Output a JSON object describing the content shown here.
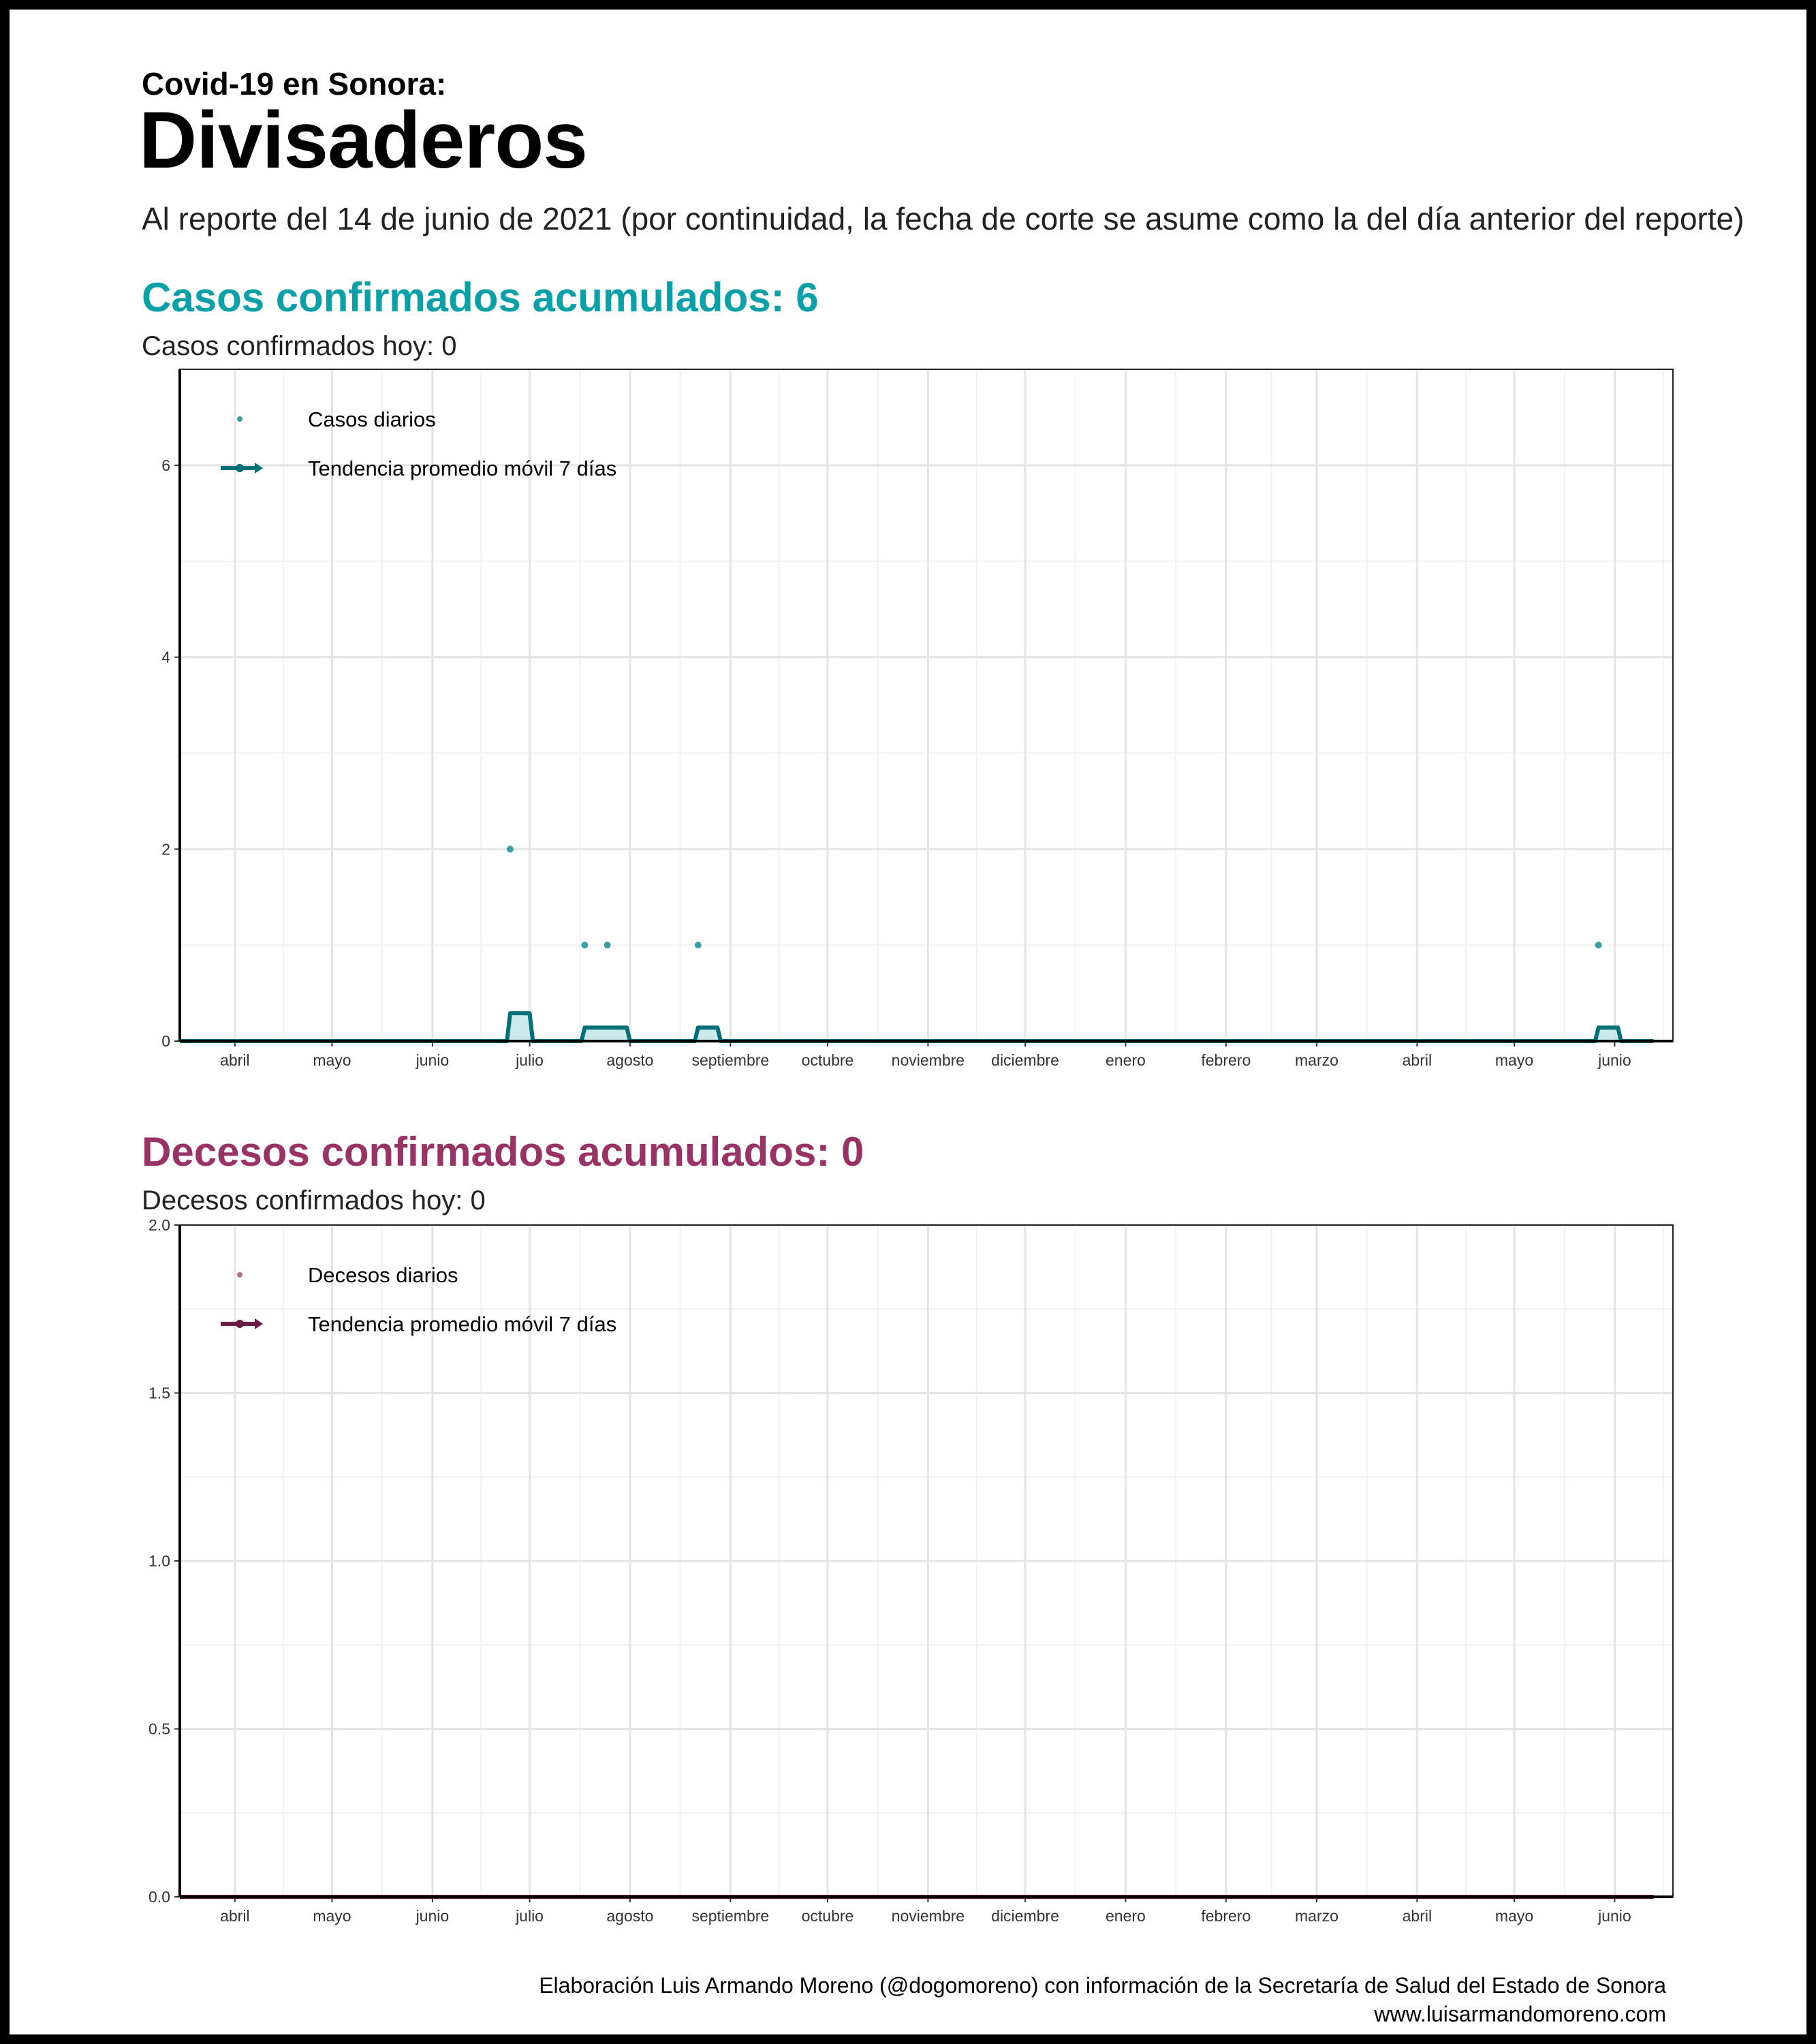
{
  "header": {
    "kicker": "Covid-19 en Sonora:",
    "place": "Divisaderos",
    "subtitle": "Al reporte del 14 de junio de 2021 (por continuidad, la fecha de corte se asume como la del día anterior del reporte)"
  },
  "cases": {
    "heading": "Casos confirmados acumulados: 6",
    "today": "Casos confirmados hoy: 0"
  },
  "deaths": {
    "heading": "Decesos confirmados acumulados: 0",
    "today": "Decesos confirmados hoy: 0"
  },
  "caption": {
    "line1": "Elaboración Luis Armando Moreno (@dogomoreno) con información de la Secretaría de Salud del Estado de Sonora",
    "line2": "www.luisarmandomoreno.com"
  },
  "chart_data": [
    {
      "type": "scatter",
      "title": "",
      "xlabel": "",
      "ylabel": "",
      "x_axis": "date",
      "xlim": [
        "2020-03-15",
        "2021-06-19"
      ],
      "ylim": [
        0,
        7
      ],
      "y_ticks": [
        0,
        2,
        4,
        6
      ],
      "grid": true,
      "legend_position": "top-left",
      "x_tick_labels": [
        {
          "date": "2020-04-01",
          "label": "abril"
        },
        {
          "date": "2020-05-01",
          "label": "mayo"
        },
        {
          "date": "2020-06-01",
          "label": "junio"
        },
        {
          "date": "2020-07-01",
          "label": "julio"
        },
        {
          "date": "2020-08-01",
          "label": "agosto"
        },
        {
          "date": "2020-09-01",
          "label": "septiembre"
        },
        {
          "date": "2020-10-01",
          "label": "octubre"
        },
        {
          "date": "2020-11-01",
          "label": "noviembre"
        },
        {
          "date": "2020-12-01",
          "label": "diciembre"
        },
        {
          "date": "2021-01-01",
          "label": "enero"
        },
        {
          "date": "2021-02-01",
          "label": "febrero"
        },
        {
          "date": "2021-03-01",
          "label": "marzo"
        },
        {
          "date": "2021-04-01",
          "label": "abril"
        },
        {
          "date": "2021-05-01",
          "label": "mayo"
        },
        {
          "date": "2021-06-01",
          "label": "junio"
        }
      ],
      "series": [
        {
          "name": "Casos diarios",
          "kind": "points",
          "color": "#3a9ea5",
          "points": [
            {
              "x": "2020-06-25",
              "y": 2
            },
            {
              "x": "2020-07-18",
              "y": 1
            },
            {
              "x": "2020-07-25",
              "y": 1
            },
            {
              "x": "2020-08-22",
              "y": 1
            },
            {
              "x": "2021-05-27",
              "y": 1
            }
          ]
        },
        {
          "name": "Tendencia promedio móvil 7 días",
          "kind": "line-area",
          "color": "#007078",
          "fill": "#bfe3e6",
          "points": [
            {
              "x": "2020-03-15",
              "y": 0
            },
            {
              "x": "2020-06-24",
              "y": 0
            },
            {
              "x": "2020-06-25",
              "y": 0.29
            },
            {
              "x": "2020-07-01",
              "y": 0.29
            },
            {
              "x": "2020-07-02",
              "y": 0
            },
            {
              "x": "2020-07-17",
              "y": 0
            },
            {
              "x": "2020-07-18",
              "y": 0.14
            },
            {
              "x": "2020-07-31",
              "y": 0.14
            },
            {
              "x": "2020-08-01",
              "y": 0
            },
            {
              "x": "2020-08-21",
              "y": 0
            },
            {
              "x": "2020-08-22",
              "y": 0.14
            },
            {
              "x": "2020-08-28",
              "y": 0.14
            },
            {
              "x": "2020-08-29",
              "y": 0
            },
            {
              "x": "2021-05-26",
              "y": 0
            },
            {
              "x": "2021-05-27",
              "y": 0.14
            },
            {
              "x": "2021-06-02",
              "y": 0.14
            },
            {
              "x": "2021-06-03",
              "y": 0
            },
            {
              "x": "2021-06-13",
              "y": 0
            }
          ]
        }
      ]
    },
    {
      "type": "scatter",
      "title": "",
      "xlabel": "",
      "ylabel": "",
      "x_axis": "date",
      "xlim": [
        "2020-03-15",
        "2021-06-19"
      ],
      "ylim": [
        0,
        2
      ],
      "y_ticks": [
        0.0,
        0.5,
        1.0,
        1.5,
        2.0
      ],
      "grid": true,
      "legend_position": "top-left",
      "x_tick_labels": [
        {
          "date": "2020-04-01",
          "label": "abril"
        },
        {
          "date": "2020-05-01",
          "label": "mayo"
        },
        {
          "date": "2020-06-01",
          "label": "junio"
        },
        {
          "date": "2020-07-01",
          "label": "julio"
        },
        {
          "date": "2020-08-01",
          "label": "agosto"
        },
        {
          "date": "2020-09-01",
          "label": "septiembre"
        },
        {
          "date": "2020-10-01",
          "label": "octubre"
        },
        {
          "date": "2020-11-01",
          "label": "noviembre"
        },
        {
          "date": "2020-12-01",
          "label": "diciembre"
        },
        {
          "date": "2021-01-01",
          "label": "enero"
        },
        {
          "date": "2021-02-01",
          "label": "febrero"
        },
        {
          "date": "2021-03-01",
          "label": "marzo"
        },
        {
          "date": "2021-04-01",
          "label": "abril"
        },
        {
          "date": "2021-05-01",
          "label": "mayo"
        },
        {
          "date": "2021-06-01",
          "label": "junio"
        }
      ],
      "series": [
        {
          "name": "Decesos diarios",
          "kind": "points",
          "color": "#b07090",
          "points": []
        },
        {
          "name": "Tendencia promedio móvil 7 días",
          "kind": "line-area",
          "color": "#6b1a45",
          "fill": "#e8c8d8",
          "points": [
            {
              "x": "2020-03-15",
              "y": 0
            },
            {
              "x": "2021-06-13",
              "y": 0
            }
          ]
        }
      ]
    }
  ]
}
